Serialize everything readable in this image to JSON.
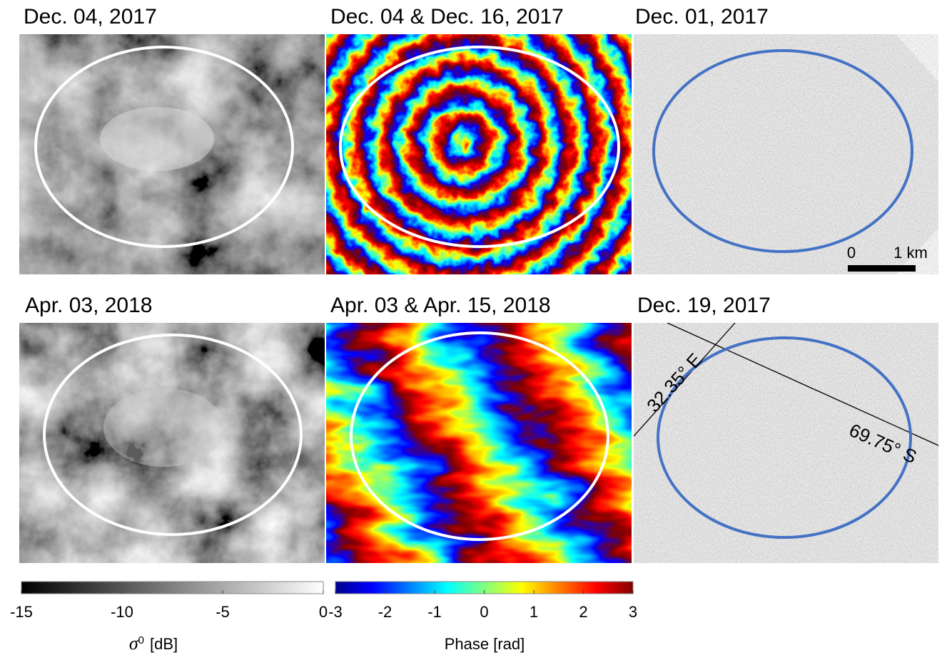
{
  "panels": [
    {
      "title": "Dec. 04, 2017"
    },
    {
      "title": "Dec. 04 & Dec. 16, 2017"
    },
    {
      "title": "Dec. 01, 2017"
    },
    {
      "title": "Apr. 03, 2018"
    },
    {
      "title": "Apr. 03 & Apr. 15, 2018"
    },
    {
      "title": "Dec. 19, 2017"
    }
  ],
  "scale_bar": {
    "start": "0",
    "end": "1 km"
  },
  "annotations": {
    "longitude": "32.35° E",
    "latitude": "69.75° S"
  },
  "colorbars": [
    {
      "symbol": "σ",
      "superscript": "0",
      "unit": "[dB]",
      "lim": [
        -15,
        0
      ],
      "ticks": [
        -15,
        -10,
        -5,
        0
      ]
    },
    {
      "label": "Phase [rad]",
      "lim": [
        -3,
        3
      ],
      "ticks": [
        -3,
        -2,
        -1,
        0,
        1,
        2,
        3
      ]
    }
  ]
}
